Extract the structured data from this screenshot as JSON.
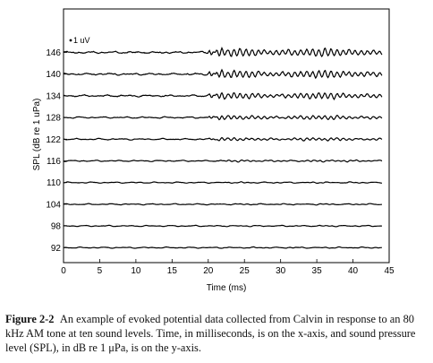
{
  "chart_data": {
    "type": "line",
    "ylabel": "SPL (dB re 1 uPa)",
    "xlabel": "Time (ms)",
    "xlim": [
      0,
      45
    ],
    "xticks": [
      0,
      5,
      10,
      15,
      20,
      25,
      30,
      35,
      40,
      45
    ],
    "x_trace_range": [
      0,
      44
    ],
    "scale_bar_label": "1 uV",
    "grid": false,
    "series": [
      {
        "name": "146",
        "amplitude": 0.95,
        "onset_ms": 20
      },
      {
        "name": "140",
        "amplitude": 0.85,
        "onset_ms": 20
      },
      {
        "name": "134",
        "amplitude": 0.7,
        "onset_ms": 20
      },
      {
        "name": "128",
        "amplitude": 0.45,
        "onset_ms": 20
      },
      {
        "name": "122",
        "amplitude": 0.3,
        "onset_ms": 20
      },
      {
        "name": "116",
        "amplitude": 0.15,
        "onset_ms": 21
      },
      {
        "name": "110",
        "amplitude": 0.06,
        "onset_ms": 21
      },
      {
        "name": "104",
        "amplitude": 0.05,
        "onset_ms": 21
      },
      {
        "name": "98",
        "amplitude": 0.04,
        "onset_ms": 21
      },
      {
        "name": "92",
        "amplitude": 0.04,
        "onset_ms": 21
      }
    ]
  },
  "caption": {
    "label": "Figure 2-2",
    "text": "An example of evoked potential data collected from Calvin in response to an 80 kHz AM tone at ten sound levels.  Time, in milliseconds, is on the x-axis, and sound pressure level (SPL), in dB re 1 μPa, is on the y-axis."
  }
}
